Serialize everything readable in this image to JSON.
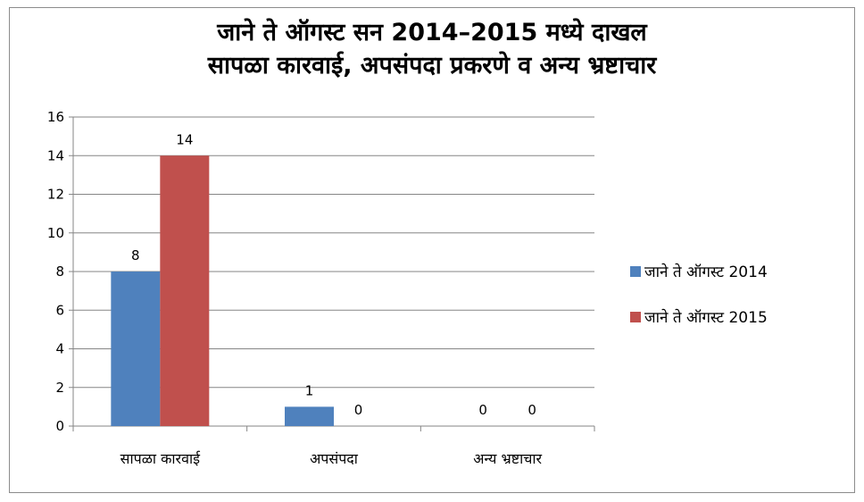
{
  "chart_data": {
    "type": "bar",
    "title": [
      "जाने ते ऑगस्ट सन 2014–2015 मध्ये दाखल",
      "सापळा कारवाई, अपसंपदा प्रकरणे व अन्य भ्रष्टाचार"
    ],
    "categories": [
      "सापळा कारवाई",
      "अपसंपदा",
      "अन्य भ्रष्टाचार"
    ],
    "series": [
      {
        "name": "जाने ते ऑगस्ट 2014",
        "values": [
          8,
          1,
          0
        ],
        "color": "#4f81bd"
      },
      {
        "name": "जाने ते ऑगस्ट 2015",
        "values": [
          14,
          0,
          0
        ],
        "color": "#c0504d"
      }
    ],
    "ylim": [
      0,
      16
    ],
    "yticks": [
      0,
      2,
      4,
      6,
      8,
      10,
      12,
      14,
      16
    ],
    "grid": true,
    "legend_position": "right",
    "data_labels": true
  }
}
